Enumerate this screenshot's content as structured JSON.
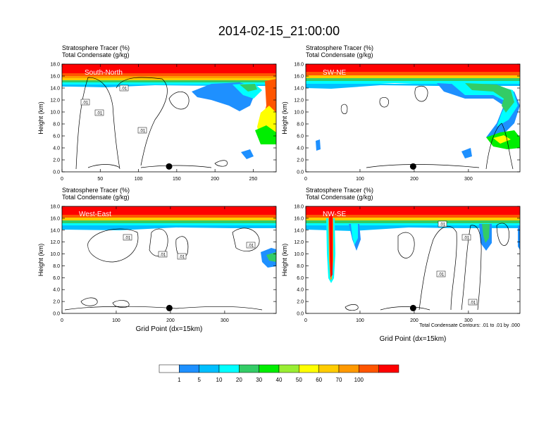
{
  "page": {
    "title": "2014-02-15_21:00:00",
    "contour_note": "Total Condensate Contours: .01 to .01 by .000",
    "xlabel": "Grid Point (dx=15km)"
  },
  "colors": {
    "levels": [
      "#ffffff",
      "#1e90ff",
      "#00bfff",
      "#00ffff",
      "#33cc66",
      "#00ee00",
      "#99ee33",
      "#ffff00",
      "#ffcc00",
      "#ff9900",
      "#ff5500",
      "#ff0000"
    ],
    "label_text": "#ffffff",
    "contour": "#000000"
  },
  "chart_data": [
    {
      "type": "heatmap",
      "id": "south-north",
      "title_line1": "Stratosphere Tracer   (%)",
      "title_line2": "Total Condensate   (g/kg)",
      "section_label": "South-North",
      "ylabel": "Height (km)",
      "xlabel": "",
      "xlim": [
        0,
        280
      ],
      "ylim": [
        0,
        18
      ],
      "xticks": [
        0,
        50,
        100,
        150,
        200,
        250
      ],
      "yticks": [
        "0.0",
        "2.0",
        "4.0",
        "6.0",
        "8.0",
        "10.0",
        "12.0",
        "14.0",
        "16.0",
        "18.0"
      ],
      "marker_x": 140,
      "contour_labels": [
        ".01",
        ".01",
        ".01",
        ".01"
      ]
    },
    {
      "type": "heatmap",
      "id": "sw-ne",
      "title_line1": "Stratosphere Tracer   (%)",
      "title_line2": "Total Condensate   (g/kg)",
      "section_label": "SW-NE",
      "ylabel": "Height (km)",
      "xlabel": "",
      "xlim": [
        0,
        395
      ],
      "ylim": [
        0,
        18
      ],
      "xticks": [
        0,
        100,
        200,
        300
      ],
      "yticks": [
        "0.0",
        "2.0",
        "4.0",
        "6.0",
        "8.0",
        "10.0",
        "12.0",
        "14.0",
        "16.0",
        "18.0"
      ],
      "marker_x": 198,
      "contour_labels": []
    },
    {
      "type": "heatmap",
      "id": "west-east",
      "title_line1": "Stratosphere Tracer   (%)",
      "title_line2": "Total Condensate   (g/kg)",
      "section_label": "West-East",
      "ylabel": "Height (km)",
      "xlabel": "Grid Point (dx=15km)",
      "xlim": [
        0,
        395
      ],
      "ylim": [
        0,
        18
      ],
      "xticks": [
        0,
        100,
        200,
        300
      ],
      "yticks": [
        "0.0",
        "2.0",
        "4.0",
        "6.0",
        "8.0",
        "10.0",
        "12.0",
        "14.0",
        "16.0",
        "18.0"
      ],
      "marker_x": 198,
      "contour_labels": [
        ".01",
        ".01",
        ".01",
        ".01"
      ]
    },
    {
      "type": "heatmap",
      "id": "nw-se",
      "title_line1": "Stratosphere Tracer   (%)",
      "title_line2": "Total Condensate   (g/kg)",
      "section_label": "NW-SE",
      "ylabel": "Height (km)",
      "xlabel": "Grid Point (dx=15km)",
      "xlim": [
        0,
        395
      ],
      "ylim": [
        0,
        18
      ],
      "xticks": [
        0,
        100,
        200,
        300
      ],
      "yticks": [
        "0.0",
        "2.0",
        "4.0",
        "6.0",
        "8.0",
        "10.0",
        "12.0",
        "14.0",
        "16.0",
        "18.0"
      ],
      "marker_x": 198,
      "contour_labels": [
        ".01",
        ".01",
        ".01",
        ".01"
      ]
    }
  ],
  "colorbar": {
    "labels": [
      "1",
      "5",
      "10",
      "20",
      "30",
      "40",
      "50",
      "60",
      "70",
      "100"
    ]
  }
}
